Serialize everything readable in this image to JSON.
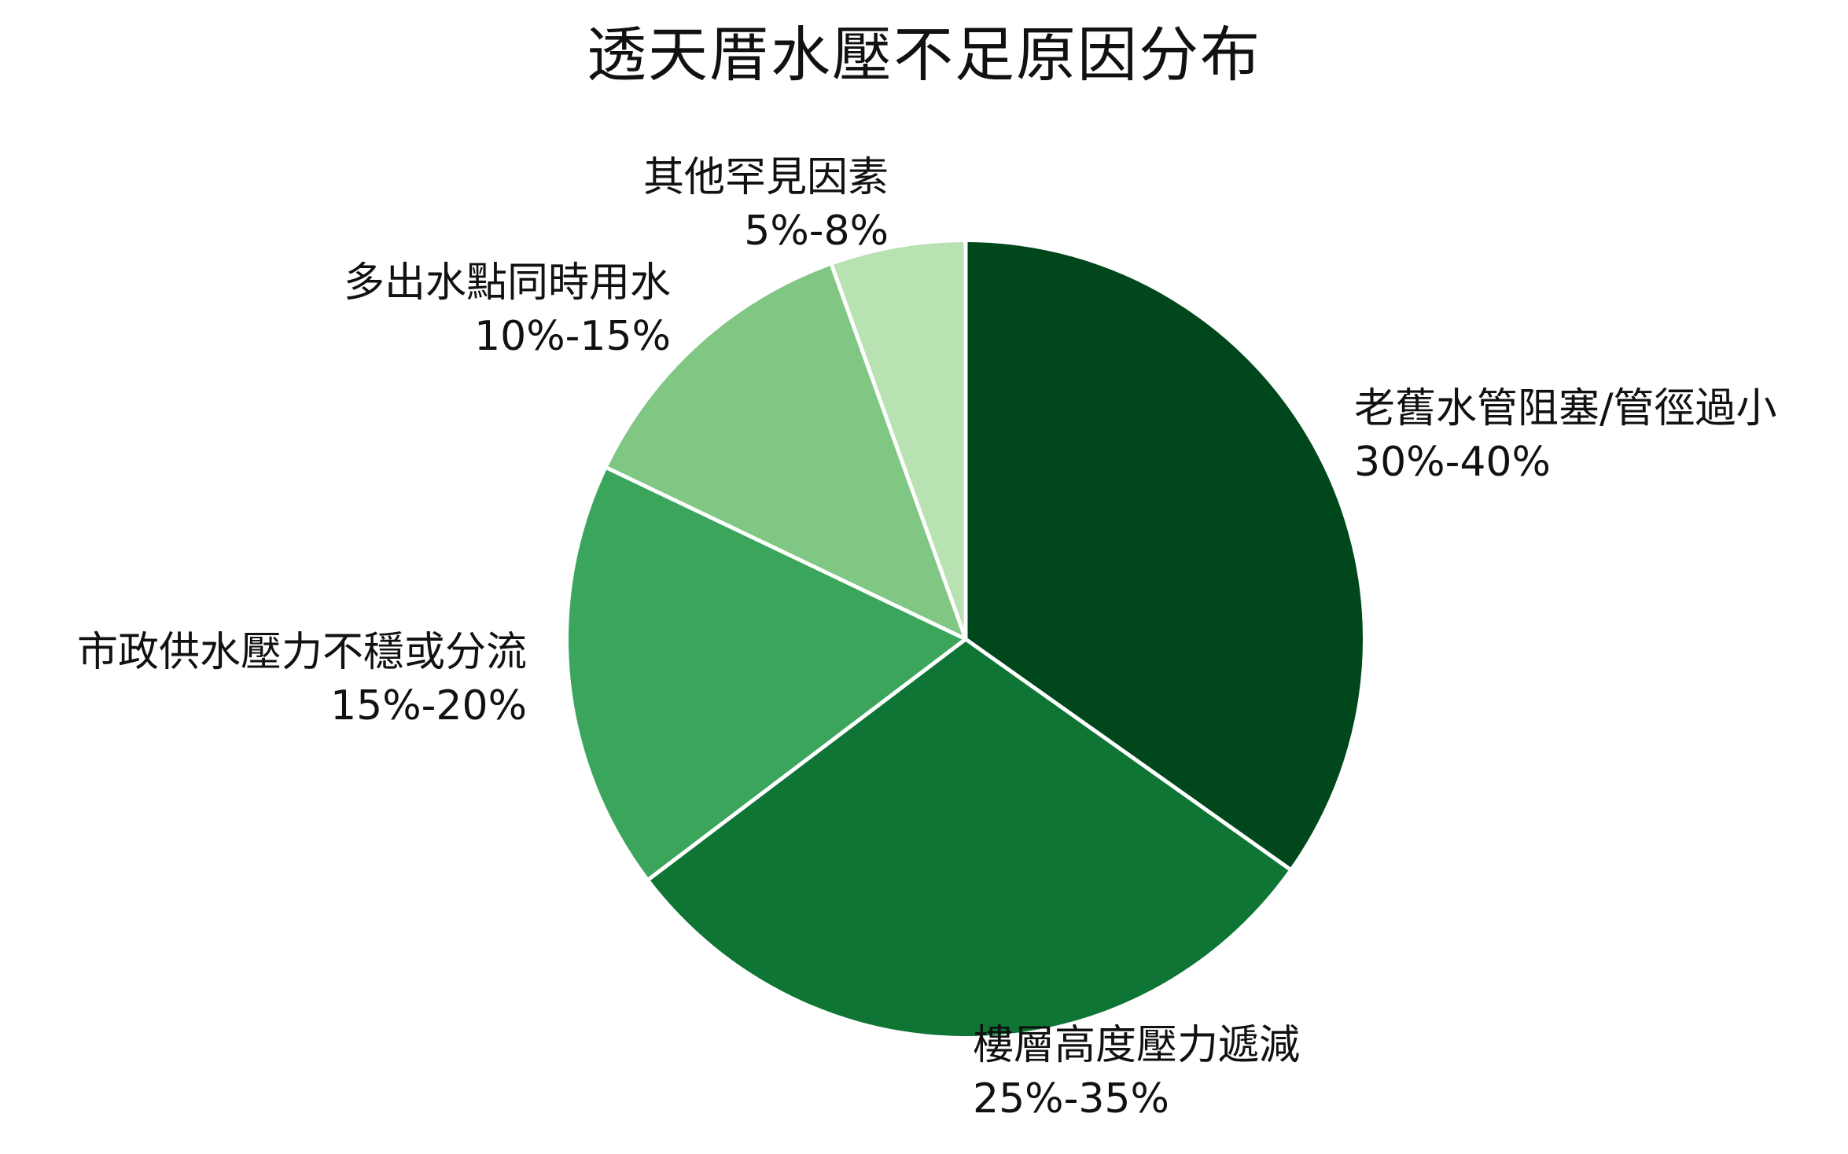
{
  "chart_data": {
    "type": "pie",
    "title": "透天厝水壓不足原因分布",
    "start_angle_deg": 0,
    "direction": "clockwise",
    "colors": {
      "divider": "#ffffff"
    },
    "slices": [
      {
        "label": "老舊水管阻塞/管徑過小",
        "range": "30%-40%",
        "value": 35,
        "color": "#00471b"
      },
      {
        "label": "樓層高度壓力遞減",
        "range": "25%-35%",
        "value": 30,
        "color": "#0f7535"
      },
      {
        "label": "市政供水壓力不穩或分流",
        "range": "15%-20%",
        "value": 17.5,
        "color": "#3ca55c"
      },
      {
        "label": "多出水點同時用水",
        "range": "10%-15%",
        "value": 12.5,
        "color": "#81c784"
      },
      {
        "label": "其他罕見因素",
        "range": "5%-8%",
        "value": 5.5,
        "color": "#b8e2b2"
      }
    ]
  }
}
